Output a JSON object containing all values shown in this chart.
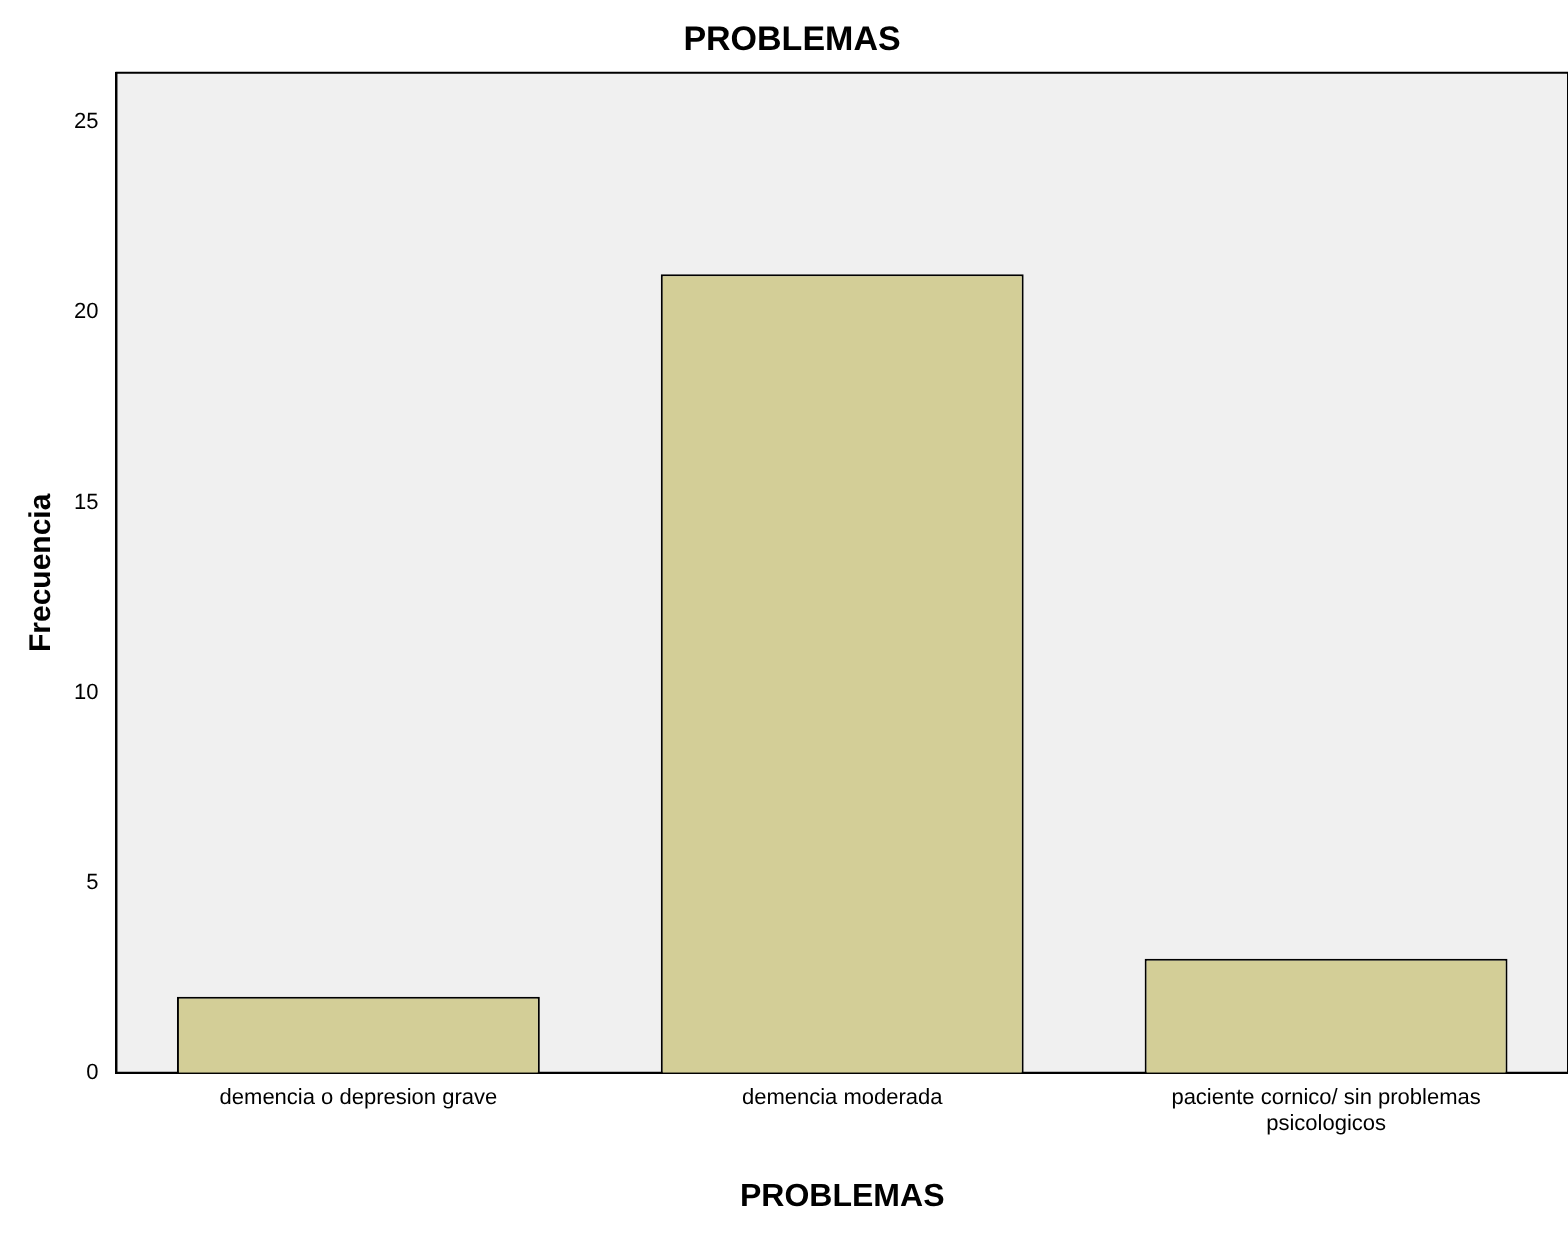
{
  "chart_data": {
    "type": "bar",
    "title": "PROBLEMAS",
    "xlabel": "PROBLEMAS",
    "ylabel": "Frecuencia",
    "categories": [
      "demencia o depresion grave",
      "demencia moderada",
      "paciente cornico/ sin problemas psicologicos"
    ],
    "values": [
      2,
      21,
      3
    ],
    "color": "#d3ce97",
    "ylim": [
      0,
      26.3
    ],
    "yticks": [
      0,
      5,
      10,
      15,
      20,
      25
    ],
    "grid": false,
    "legend": false
  }
}
